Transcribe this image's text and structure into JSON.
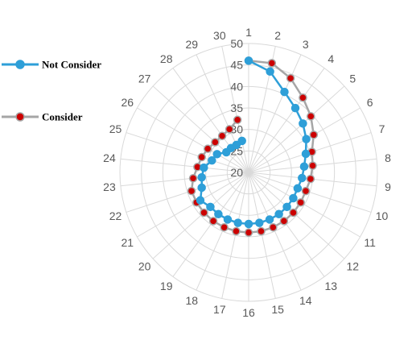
{
  "chart_data": {
    "type": "radar",
    "categories": [
      "1",
      "2",
      "3",
      "4",
      "5",
      "6",
      "7",
      "8",
      "9",
      "10",
      "11",
      "12",
      "13",
      "14",
      "15",
      "16",
      "17",
      "18",
      "19",
      "20",
      "21",
      "22",
      "23",
      "24",
      "25",
      "26",
      "27",
      "28",
      "29",
      "30"
    ],
    "rlim": [
      20,
      50
    ],
    "ticks": [
      "20",
      "25",
      "30",
      "35",
      "40",
      "45",
      "50"
    ],
    "grid": true,
    "legend_position": "left",
    "series": [
      {
        "name": "Not Consider",
        "color": "#2e9fd8",
        "marker_color": "#2e9fd8",
        "line_color": "#2e9fd8",
        "values": [
          46,
          44,
          40.5,
          38.5,
          37,
          35.5,
          34,
          33,
          32.5,
          32,
          32,
          32,
          32,
          32,
          32,
          32,
          32,
          32,
          32,
          32,
          33,
          31.5,
          31,
          30.5,
          29,
          28.5,
          27,
          27,
          27,
          27.5
        ]
      },
      {
        "name": "Consider",
        "color": "#a6a6a6",
        "marker_color": "#cc0000",
        "line_color": "#a6a6a6",
        "values": [
          46,
          46,
          44,
          41.5,
          39.5,
          37.5,
          35.5,
          35,
          34.5,
          34,
          34,
          34,
          34,
          34,
          34,
          34,
          34,
          34,
          34,
          34,
          34,
          34,
          33,
          32,
          31.5,
          31,
          30.5,
          30.5,
          31,
          32.5
        ]
      }
    ]
  }
}
